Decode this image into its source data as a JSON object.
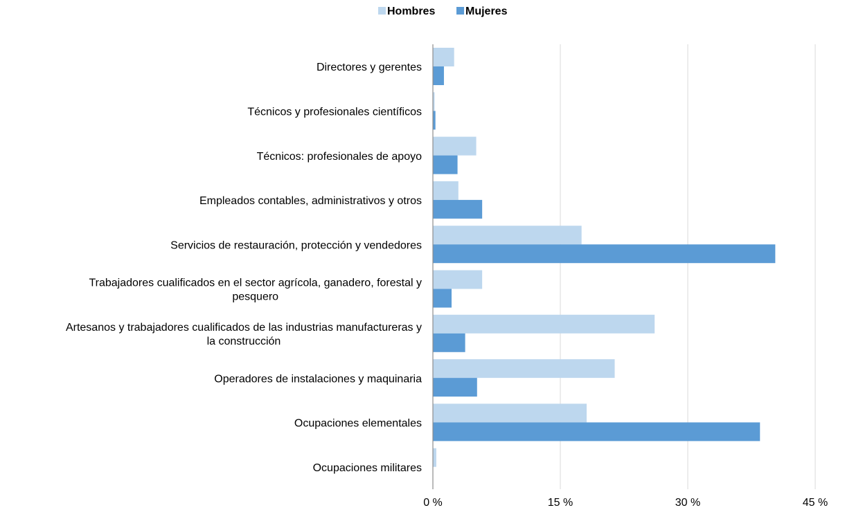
{
  "chart_data": {
    "type": "bar",
    "orientation": "horizontal",
    "title": "",
    "xlabel": "",
    "ylabel": "",
    "categories": [
      "Directores y gerentes",
      "Técnicos y profesionales científicos",
      "Técnicos: profesionales de apoyo",
      "Empleados contables, administrativos y otros",
      "Servicios de restauración, protección y vendedores",
      "Trabajadores cualificados en el sector agrícola, ganadero, forestal y pesquero",
      "Artesanos y trabajadores cualificados de las industrias manufactureras y la construcción",
      "Operadores de instalaciones y maquinaria",
      "Ocupaciones elementales",
      "Ocupaciones militares"
    ],
    "category_label_lines": [
      [
        "Directores y gerentes"
      ],
      [
        "Técnicos y profesionales científicos"
      ],
      [
        "Técnicos: profesionales de apoyo"
      ],
      [
        "Empleados contables, administrativos y otros"
      ],
      [
        "Servicios de restauración, protección y vendedores"
      ],
      [
        "Trabajadores cualificados en el sector agrícola, ganadero, forestal y",
        "pesquero"
      ],
      [
        "Artesanos y trabajadores cualificados de las industrias manufactureras y",
        "la construcción"
      ],
      [
        "Operadores de instalaciones y maquinaria"
      ],
      [
        "Ocupaciones elementales"
      ],
      [
        "Ocupaciones militares"
      ]
    ],
    "series": [
      {
        "name": "Hombres",
        "color": "#bdd7ee",
        "values": [
          2.5,
          0.2,
          5.1,
          3.0,
          17.5,
          5.8,
          26.1,
          21.4,
          18.1,
          0.4
        ]
      },
      {
        "name": "Mujeres",
        "color": "#5b9bd5",
        "values": [
          1.3,
          0.3,
          2.9,
          5.8,
          40.3,
          2.2,
          3.8,
          5.2,
          38.5,
          0.0
        ]
      }
    ],
    "xlim": [
      0,
      50
    ],
    "ticks": [
      0,
      15,
      30,
      45
    ],
    "tick_labels": [
      "0 %",
      "15 %",
      "30 %",
      "45 %"
    ],
    "grid": true,
    "legend_position": "top-center"
  }
}
